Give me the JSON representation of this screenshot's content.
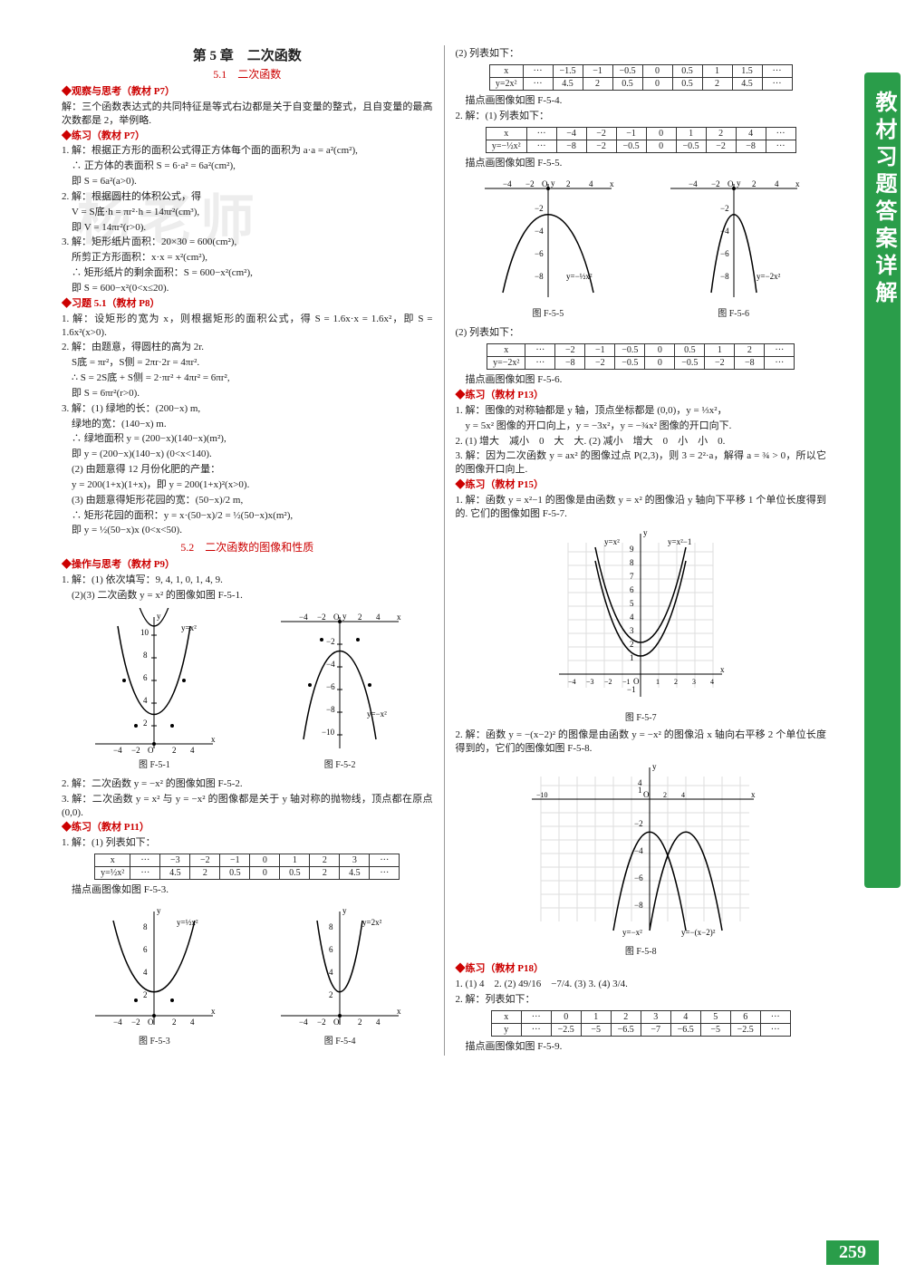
{
  "chapter": "第 5 章　二次函数",
  "section51": "5.1　二次函数",
  "h_guancha": "◆观察与思考（教材 P7）",
  "p_guancha": "解：三个函数表达式的共同特征是等式右边都是关于自变量的整式，且自变量的最高次数都是 2，举例略.",
  "h_lianxi_p7": "◆练习（教材 P7）",
  "p7_1": "1. 解：根据正方形的面积公式得正方体每个面的面积为 a·a = a²(cm²),",
  "p7_1b": "∴ 正方体的表面积 S = 6·a² = 6a²(cm²),",
  "p7_1c": "即 S = 6a²(a>0).",
  "p7_2": "2. 解：根据圆柱的体积公式，得",
  "p7_2b": "V = S底·h = πr²·h = 14πr²(cm³),",
  "p7_2c": "即 V = 14πr²(r>0).",
  "p7_3": "3. 解：矩形纸片面积：20×30 = 600(cm²),",
  "p7_3b": "所剪正方形面积：x·x = x²(cm²),",
  "p7_3c": "∴ 矩形纸片的剩余面积：S = 600−x²(cm²),",
  "p7_3d": "即 S = 600−x²(0<x≤20).",
  "h_xiti51": "◆习题 5.1（教材 P8）",
  "p8_1": "1. 解：设矩形的宽为 x，则根据矩形的面积公式，得 S = 1.6x·x = 1.6x²，即 S = 1.6x²(x>0).",
  "p8_2": "2. 解：由题意，得圆柱的高为 2r.",
  "p8_2b": "S底 = πr²，S侧 = 2πr·2r = 4πr².",
  "p8_2c": "∴ S = 2S底 + S侧 = 2·πr² + 4πr² = 6πr²,",
  "p8_2d": "即 S = 6πr²(r>0).",
  "p8_3": "3. 解：(1) 绿地的长：(200−x) m,",
  "p8_3b": "绿地的宽：(140−x) m.",
  "p8_3c": "∴ 绿地面积 y = (200−x)(140−x)(m²),",
  "p8_3d": "即 y = (200−x)(140−x)  (0<x<140).",
  "p8_3e": "(2) 由题意得 12 月份化肥的产量：",
  "p8_3f": "y = 200(1+x)(1+x)，即 y = 200(1+x)²(x>0).",
  "p8_3g": "(3) 由题意得矩形花园的宽：(50−x)/2 m,",
  "p8_3h": "∴ 矩形花园的面积：y = x·(50−x)/2 = ½(50−x)x(m²),",
  "p8_3i": "即 y = ½(50−x)x (0<x<50).",
  "section52": "5.2　二次函数的图像和性质",
  "h_caozuo": "◆操作与思考（教材 P9）",
  "p9_1": "1. 解：(1) 依次填写：9, 4, 1, 0, 1, 4, 9.",
  "p9_1b": "(2)(3) 二次函数 y = x² 的图像如图 F-5-1.",
  "fig51": "图 F-5-1",
  "fig52": "图 F-5-2",
  "p9_2": "2. 解：二次函数 y = −x² 的图像如图 F-5-2.",
  "p9_3": "3. 解：二次函数 y = x² 与 y = −x² 的图像都是关于 y 轴对称的抛物线，顶点都在原点(0,0).",
  "h_lianxi_p11": "◆练习（教材 P11）",
  "p11_1": "1. 解：(1) 列表如下：",
  "table_p11_r1": [
    "x",
    "···",
    "−3",
    "−2",
    "−1",
    "0",
    "1",
    "2",
    "3",
    "···"
  ],
  "table_p11_r2": [
    "y=½x²",
    "···",
    "4.5",
    "2",
    "0.5",
    "0",
    "0.5",
    "2",
    "4.5",
    "···"
  ],
  "p11_after": "描点画图像如图 F-5-3.",
  "fig53": "图 F-5-3",
  "fig54": "图 F-5-4",
  "p11_2": "(2) 列表如下：",
  "table_p11b_r1": [
    "x",
    "···",
    "−1.5",
    "−1",
    "−0.5",
    "0",
    "0.5",
    "1",
    "1.5",
    "···"
  ],
  "table_p11b_r2": [
    "y=2x²",
    "···",
    "4.5",
    "2",
    "0.5",
    "0",
    "0.5",
    "2",
    "4.5",
    "···"
  ],
  "p11_2after": "描点画图像如图 F-5-4.",
  "p11_2_1": "2. 解：(1) 列表如下：",
  "table_p11c_r1": [
    "x",
    "···",
    "−4",
    "−2",
    "−1",
    "0",
    "1",
    "2",
    "4",
    "···"
  ],
  "table_p11c_r2": [
    "y=−½x²",
    "···",
    "−8",
    "−2",
    "−0.5",
    "0",
    "−0.5",
    "−2",
    "−8",
    "···"
  ],
  "p11_2_1after": "描点画图像如图 F-5-5.",
  "fig55": "图 F-5-5",
  "fig56": "图 F-5-6",
  "p11_2_2": "(2) 列表如下：",
  "table_p11d_r1": [
    "x",
    "···",
    "−2",
    "−1",
    "−0.5",
    "0",
    "0.5",
    "1",
    "2",
    "···"
  ],
  "table_p11d_r2": [
    "y=−2x²",
    "···",
    "−8",
    "−2",
    "−0.5",
    "0",
    "−0.5",
    "−2",
    "−8",
    "···"
  ],
  "p11_2_2after": "描点画图像如图 F-5-6.",
  "h_lianxi_p13": "◆练习（教材 P13）",
  "p13_1": "1. 解：图像的对称轴都是 y 轴，顶点坐标都是 (0,0)，y = ⅓x²，",
  "p13_1b": "y = 5x² 图像的开口向上，y = −3x²，y = −¾x² 图像的开口向下.",
  "p13_2": "2. (1) 增大　减小　0　大　大. (2) 减小　增大　0　小　小　0.",
  "p13_3": "3. 解：因为二次函数 y = ax² 的图像过点 P(2,3)，则 3 = 2²·a，解得 a = ¾ > 0，所以它的图像开口向上.",
  "h_lianxi_p15": "◆练习（教材 P15）",
  "p15_1": "1. 解：函数 y = x²−1 的图像是由函数 y = x² 的图像沿 y 轴向下平移 1 个单位长度得到的. 它们的图像如图 F-5-7.",
  "fig57": "图 F-5-7",
  "p15_2": "2. 解：函数 y = −(x−2)² 的图像是由函数 y = −x² 的图像沿 x 轴向右平移 2 个单位长度得到的，它们的图像如图 F-5-8.",
  "fig58": "图 F-5-8",
  "h_lianxi_p18": "◆练习（教材 P18）",
  "p18_1": "1. (1) 4　2. (2) 49/16　−7/4. (3) 3. (4) 3/4.",
  "p18_2": "2. 解：列表如下：",
  "table_p18_r1": [
    "x",
    "···",
    "0",
    "1",
    "2",
    "3",
    "4",
    "5",
    "6",
    "···"
  ],
  "table_p18_r2": [
    "y",
    "···",
    "−2.5",
    "−5",
    "−6.5",
    "−7",
    "−6.5",
    "−5",
    "−2.5",
    "···"
  ],
  "p18_after": "描点画图像如图 F-5-9.",
  "sidebar": "教材习题答案详解",
  "pagenum": "259",
  "charts": {
    "f51": {
      "type": "parabola-up",
      "xlim": [
        -5,
        5
      ],
      "ylim": [
        0,
        10
      ],
      "label": "y=x²",
      "ytick": 2,
      "color": "#000"
    },
    "f52": {
      "type": "parabola-down",
      "xlim": [
        -5,
        5
      ],
      "ylim": [
        -10,
        0
      ],
      "label": "y=−x²",
      "ytick": 2,
      "color": "#000"
    },
    "f53": {
      "type": "parabola-up",
      "xlim": [
        -5,
        5
      ],
      "ylim": [
        0,
        8
      ],
      "label": "y=½x²",
      "ytick": 2,
      "color": "#000"
    },
    "f54": {
      "type": "parabola-up",
      "xlim": [
        -5,
        5
      ],
      "ylim": [
        0,
        8
      ],
      "label": "y=2x²",
      "ytick": 2,
      "color": "#000"
    },
    "f55": {
      "type": "parabola-down",
      "xlim": [
        -5,
        5
      ],
      "ylim": [
        -8,
        0
      ],
      "label": "y=−½x²",
      "ytick": 2,
      "color": "#000"
    },
    "f56": {
      "type": "parabola-down",
      "xlim": [
        -5,
        5
      ],
      "ylim": [
        -8,
        0
      ],
      "label": "y=−2x²",
      "ytick": 2,
      "color": "#000"
    },
    "f57": {
      "type": "two-parabola-up",
      "xlim": [
        -5,
        5
      ],
      "ylim": [
        -1,
        9
      ],
      "labels": [
        "y=x²",
        "y=x²−1"
      ],
      "grid_color": "#e0e0e0"
    },
    "f58": {
      "type": "two-parabola-down",
      "xlim": [
        -11,
        6
      ],
      "ylim": [
        -10,
        4
      ],
      "labels": [
        "y=−x²",
        "y=−(x−2)²"
      ],
      "grid_color": "#e0e0e0"
    }
  }
}
